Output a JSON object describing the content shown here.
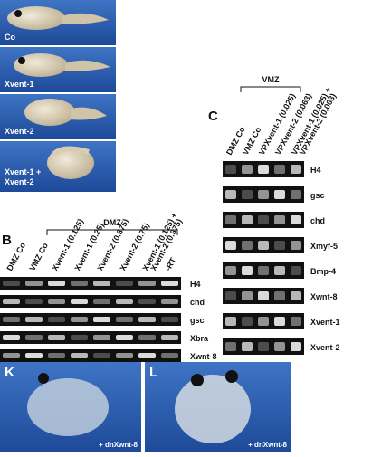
{
  "panel_a": {
    "labels": [
      [
        "Co"
      ],
      [
        "Xvent-1"
      ],
      [
        "Xvent-2"
      ],
      [
        "Xvent-1 +",
        "Xvent-2"
      ]
    ]
  },
  "panel_b": {
    "label": "B",
    "group": "DMZ",
    "lanes": [
      [
        "DMZ Co"
      ],
      [
        "VMZ Co"
      ],
      [
        "Xvent-1 (0.125)"
      ],
      [
        "Xvent-1 (0.25)"
      ],
      [
        "Xvent-2 (0.375)"
      ],
      [
        "Xvent-2 (0.75)"
      ],
      [
        "Xvent-1 (0.125) +",
        "Xvent-2 (0.375)"
      ],
      [
        "-RT"
      ]
    ],
    "genes": [
      "H4",
      "chd",
      "gsc",
      "Xbra",
      "Xwnt-8"
    ]
  },
  "panel_c": {
    "label": "C",
    "group": "VMZ",
    "lanes": [
      [
        "DMZ Co"
      ],
      [
        "VMZ Co"
      ],
      [
        "VPXvent-1 (0.025)"
      ],
      [
        "VPXvent-2 (0.063)"
      ],
      [
        "VPXvent-1 (0.025) +",
        "VPXvent-2 (0.063)"
      ]
    ],
    "genes": [
      "H4",
      "gsc",
      "chd",
      "Xmyf-5",
      "Bmp-4",
      "Xwnt-8",
      "Xvent-1",
      "Xvent-2"
    ]
  },
  "panel_k": {
    "label": "K",
    "note": "+ dnXwnt-8"
  },
  "panel_l": {
    "label": "L",
    "note": "+ dnXwnt-8"
  }
}
